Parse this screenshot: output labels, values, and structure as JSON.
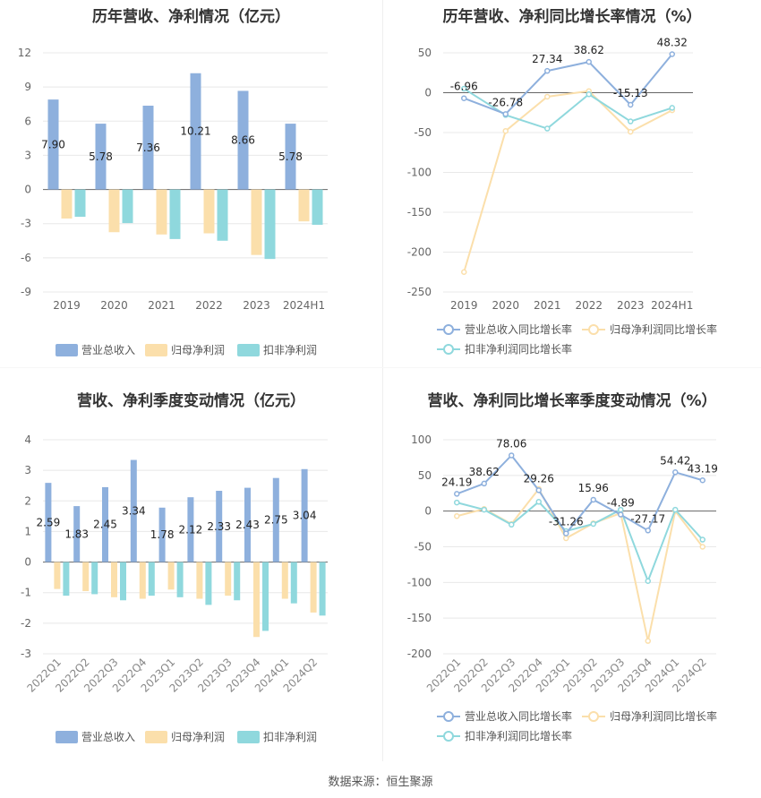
{
  "source": "数据来源：恒生聚源",
  "colors": {
    "revenue": "#8eb0dd",
    "net_profit": "#fbdfab",
    "deducted": "#8fd8dd",
    "grid": "#e8e8e8",
    "axis": "#999999",
    "text": "#333333",
    "zero": "#666666"
  },
  "chart_data": [
    {
      "id": "annual_bar",
      "type": "bar",
      "title": "历年营收、净利情况（亿元）",
      "categories": [
        "2019",
        "2020",
        "2021",
        "2022",
        "2023",
        "2024H1"
      ],
      "series": [
        {
          "name": "营业总收入",
          "values": [
            7.9,
            5.78,
            7.36,
            10.21,
            8.66,
            5.78
          ]
        },
        {
          "name": "归母净利润",
          "values": [
            -2.55,
            -3.75,
            -3.95,
            -3.85,
            -5.75,
            -2.8
          ]
        },
        {
          "name": "扣非净利润",
          "values": [
            -2.4,
            -2.95,
            -4.35,
            -4.5,
            -6.1,
            -3.1
          ]
        }
      ],
      "labels": [
        "7.90",
        "5.78",
        "7.36",
        "10.21",
        "8.66",
        "5.78"
      ],
      "ylim": [
        -9,
        12
      ],
      "yticks": [
        12,
        9,
        6,
        3,
        0,
        -3,
        -6,
        -9
      ],
      "legend": "bottom"
    },
    {
      "id": "annual_line",
      "type": "line",
      "title": "历年营收、净利同比增长率情况（%）",
      "categories": [
        "2019",
        "2020",
        "2021",
        "2022",
        "2023",
        "2024H1"
      ],
      "series": [
        {
          "name": "营业总收入同比增长率",
          "values": [
            -6.96,
            -26.78,
            27.34,
            38.62,
            -15.13,
            48.32
          ],
          "labels": [
            "-6.96",
            "-26.78",
            "27.34",
            "38.62",
            "-15.13",
            "48.32"
          ]
        },
        {
          "name": "归母净利润同比增长率",
          "values": [
            -225,
            -48,
            -5,
            2,
            -49,
            -22
          ]
        },
        {
          "name": "扣非净利润同比增长率",
          "values": [
            5,
            -28,
            -45,
            -2,
            -36,
            -19
          ]
        }
      ],
      "ylim": [
        -250,
        50
      ],
      "yticks": [
        50,
        0,
        -50,
        -100,
        -150,
        -200,
        -250
      ],
      "legend": "bottom"
    },
    {
      "id": "quarter_bar",
      "type": "bar",
      "title": "营收、净利季度变动情况（亿元）",
      "categories": [
        "2022Q1",
        "2022Q2",
        "2022Q3",
        "2022Q4",
        "2023Q1",
        "2023Q2",
        "2023Q3",
        "2023Q4",
        "2024Q1",
        "2024Q2"
      ],
      "series": [
        {
          "name": "营业总收入",
          "values": [
            2.59,
            1.83,
            2.45,
            3.34,
            1.78,
            2.12,
            2.33,
            2.43,
            2.75,
            3.04
          ]
        },
        {
          "name": "归母净利润",
          "values": [
            -0.88,
            -0.95,
            -1.15,
            -1.2,
            -0.9,
            -1.2,
            -1.1,
            -2.45,
            -1.2,
            -1.65
          ]
        },
        {
          "name": "扣非净利润",
          "values": [
            -1.1,
            -1.05,
            -1.25,
            -1.1,
            -1.15,
            -1.4,
            -1.25,
            -2.25,
            -1.35,
            -1.75
          ]
        }
      ],
      "labels": [
        "2.59",
        "1.83",
        "2.45",
        "3.34",
        "1.78",
        "2.12",
        "2.33",
        "2.43",
        "2.75",
        "3.04"
      ],
      "ylim": [
        -3,
        4
      ],
      "yticks": [
        4,
        3,
        2,
        1,
        0,
        -1,
        -2,
        -3
      ],
      "legend": "bottom"
    },
    {
      "id": "quarter_line",
      "type": "line",
      "title": "营收、净利同比增长率季度变动情况（%）",
      "categories": [
        "2022Q1",
        "2022Q2",
        "2022Q3",
        "2022Q4",
        "2023Q1",
        "2023Q2",
        "2023Q3",
        "2023Q4",
        "2024Q1",
        "2024Q2"
      ],
      "series": [
        {
          "name": "营业总收入同比增长率",
          "values": [
            24.19,
            38.62,
            78.06,
            29.26,
            -31.26,
            15.96,
            -4.89,
            -27.17,
            54.42,
            43.19
          ],
          "labels": [
            "24.19",
            "38.62",
            "78.06",
            "29.26",
            "-31.26",
            "15.96",
            "-4.89",
            "-27.17",
            "54.42",
            "43.19"
          ]
        },
        {
          "name": "归母净利润同比增长率",
          "values": [
            -7,
            3,
            -18,
            31,
            -38,
            -17,
            -3,
            -182,
            0,
            -50
          ]
        },
        {
          "name": "扣非净利润同比增长率",
          "values": [
            12,
            2,
            -19,
            13,
            -28,
            -18,
            2,
            -98,
            2,
            -40
          ]
        }
      ],
      "ylim": [
        -200,
        100
      ],
      "yticks": [
        100,
        50,
        0,
        -50,
        -100,
        -150,
        -200
      ],
      "legend": "bottom"
    }
  ]
}
